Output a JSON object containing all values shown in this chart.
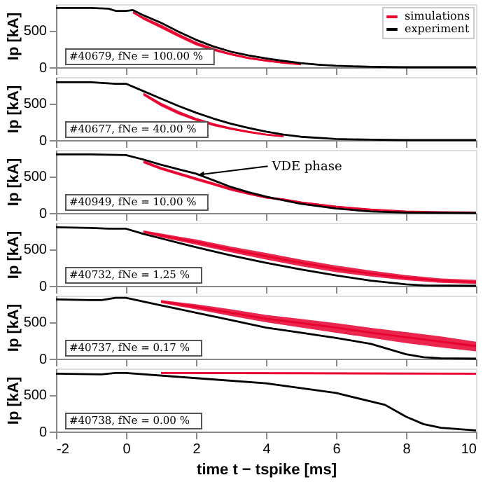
{
  "chart_data": [
    {
      "type": "line",
      "xlim": [
        -2,
        10
      ],
      "xticks": [
        -2,
        0,
        2,
        4,
        6,
        8,
        10
      ],
      "ylim": [
        0,
        850
      ],
      "yticks": [
        0,
        500
      ],
      "ylabel": "Ip [kA]",
      "tick_labels": "y",
      "legend": "top right",
      "grid": false,
      "annotations": [
        "#40679, fNe = 100.00 %"
      ],
      "series": [
        {
          "name": "simulations",
          "color": "#e8002f",
          "x": [
            0.2,
            0.5,
            1,
            1.5,
            2,
            2.5,
            3,
            3.5,
            4,
            4.5,
            5
          ],
          "values": [
            740,
            660,
            550,
            430,
            320,
            240,
            175,
            125,
            90,
            60,
            40
          ],
          "lower": [
            730,
            640,
            525,
            405,
            295,
            220,
            160,
            110,
            75,
            50,
            30
          ],
          "upper": [
            750,
            680,
            575,
            455,
            345,
            260,
            190,
            140,
            100,
            70,
            45
          ]
        },
        {
          "name": "experiment",
          "color": "#000000",
          "x": [
            -2,
            -1,
            -0.5,
            -0.3,
            0,
            0.2,
            0.5,
            1,
            1.5,
            2,
            2.5,
            3,
            3.5,
            4,
            4.5,
            5,
            5.5,
            6,
            7,
            8,
            10
          ],
          "values": [
            800,
            800,
            790,
            760,
            760,
            770,
            700,
            600,
            480,
            370,
            280,
            210,
            160,
            120,
            85,
            55,
            35,
            20,
            5,
            0,
            0
          ]
        }
      ]
    },
    {
      "type": "line",
      "xlim": [
        -2,
        10
      ],
      "xticks": [
        -2,
        0,
        2,
        4,
        6,
        8,
        10
      ],
      "ylim": [
        0,
        850
      ],
      "yticks": [
        0,
        500
      ],
      "ylabel": "Ip [kA]",
      "tick_labels": "y",
      "grid": false,
      "annotations": [
        "#40677, fNe = 40.00 %"
      ],
      "series": [
        {
          "color": "#e8002f",
          "x": [
            0.5,
            1,
            1.5,
            2,
            2.5,
            3,
            3.5,
            4,
            4.5
          ],
          "values": [
            620,
            480,
            370,
            280,
            210,
            155,
            110,
            75,
            50
          ],
          "lower": [
            600,
            455,
            345,
            260,
            190,
            140,
            100,
            65,
            40
          ],
          "upper": [
            640,
            505,
            395,
            300,
            230,
            170,
            125,
            85,
            60
          ]
        },
        {
          "color": "#000000",
          "x": [
            -2,
            -1,
            -0.3,
            0,
            0.5,
            1,
            1.5,
            2,
            2.5,
            3,
            3.5,
            4,
            4.5,
            5,
            6,
            7,
            8,
            10
          ],
          "values": [
            780,
            780,
            760,
            760,
            660,
            560,
            460,
            370,
            290,
            220,
            165,
            115,
            75,
            45,
            15,
            5,
            0,
            0
          ]
        }
      ]
    },
    {
      "type": "line",
      "xlim": [
        -2,
        10
      ],
      "xticks": [
        -2,
        0,
        2,
        4,
        6,
        8,
        10
      ],
      "ylim": [
        0,
        850
      ],
      "yticks": [
        0,
        500
      ],
      "ylabel": "Ip [kA]",
      "tick_labels": "y",
      "grid": false,
      "annotations": [
        "#40949, fNe = 10.00 %",
        {
          "text": "VDE phase",
          "x": 2.15,
          "y": 520
        }
      ],
      "series": [
        {
          "color": "#e8002f",
          "x": [
            0.5,
            1,
            1.5,
            2,
            2.5,
            3,
            3.5,
            4,
            4.5,
            5,
            6,
            7,
            8,
            9,
            10
          ],
          "values": [
            690,
            600,
            530,
            460,
            390,
            320,
            260,
            210,
            180,
            140,
            85,
            45,
            20,
            10,
            5
          ],
          "lower": [
            670,
            580,
            510,
            440,
            370,
            300,
            245,
            195,
            165,
            125,
            75,
            40,
            15,
            5,
            0
          ],
          "upper": [
            710,
            620,
            550,
            480,
            410,
            340,
            275,
            225,
            195,
            155,
            95,
            55,
            25,
            15,
            10
          ]
        },
        {
          "color": "#000000",
          "x": [
            -2,
            -1,
            0,
            0.5,
            1,
            1.5,
            2,
            2.5,
            3,
            3.5,
            4,
            4.5,
            5,
            6,
            7,
            8,
            10
          ],
          "values": [
            790,
            790,
            780,
            720,
            650,
            590,
            530,
            440,
            350,
            280,
            220,
            170,
            125,
            60,
            20,
            5,
            0
          ]
        }
      ]
    },
    {
      "type": "line",
      "xlim": [
        -2,
        10
      ],
      "xticks": [
        -2,
        0,
        2,
        4,
        6,
        8,
        10
      ],
      "ylim": [
        0,
        850
      ],
      "yticks": [
        0,
        500
      ],
      "ylabel": "Ip [kA]",
      "tick_labels": "y",
      "grid": false,
      "annotations": [
        "#40732, fNe = 1.25 %"
      ],
      "series": [
        {
          "color": "#e8002f",
          "x": [
            0.5,
            1,
            2,
            3,
            4,
            5,
            6,
            7,
            8,
            9,
            10
          ],
          "values": [
            730,
            680,
            590,
            490,
            400,
            310,
            230,
            165,
            110,
            70,
            50
          ],
          "lower": [
            715,
            655,
            555,
            450,
            355,
            265,
            185,
            125,
            75,
            40,
            25
          ],
          "upper": [
            745,
            705,
            625,
            530,
            445,
            355,
            275,
            205,
            145,
            100,
            80
          ]
        },
        {
          "color": "#000000",
          "x": [
            -2,
            -1,
            -0.5,
            0,
            0.5,
            1,
            1.5,
            2,
            3,
            4,
            5,
            6,
            7,
            8,
            8.5,
            10
          ],
          "values": [
            790,
            780,
            770,
            770,
            700,
            640,
            580,
            520,
            410,
            310,
            220,
            140,
            70,
            20,
            5,
            0
          ]
        }
      ]
    },
    {
      "type": "line",
      "xlim": [
        -2,
        10
      ],
      "xticks": [
        -2,
        0,
        2,
        4,
        6,
        8,
        10
      ],
      "ylim": [
        0,
        850
      ],
      "yticks": [
        0,
        500
      ],
      "ylabel": "Ip [kA]",
      "tick_labels": "y",
      "grid": false,
      "annotations": [
        "#40737, fNe = 0.17 %"
      ],
      "series": [
        {
          "color": "#e8002f",
          "x": [
            1,
            2,
            3,
            4,
            5,
            6,
            7,
            8,
            9,
            10
          ],
          "values": [
            770,
            700,
            620,
            540,
            480,
            420,
            350,
            290,
            230,
            170
          ],
          "lower": [
            750,
            665,
            575,
            490,
            420,
            350,
            280,
            210,
            150,
            100
          ],
          "upper": [
            790,
            735,
            665,
            590,
            535,
            480,
            415,
            360,
            300,
            230
          ]
        },
        {
          "color": "#000000",
          "x": [
            -2,
            -1,
            -0.7,
            -0.3,
            0,
            1,
            2,
            3,
            4,
            5,
            6,
            7,
            8,
            8.5,
            9,
            10
          ],
          "values": [
            800,
            790,
            790,
            820,
            820,
            720,
            620,
            520,
            420,
            350,
            280,
            200,
            60,
            20,
            5,
            0
          ]
        }
      ]
    },
    {
      "type": "line",
      "xlim": [
        -2,
        10
      ],
      "xticks": [
        -2,
        0,
        2,
        4,
        6,
        8,
        10
      ],
      "ylim": [
        0,
        850
      ],
      "yticks": [
        0,
        500
      ],
      "xlabel": "time t − tspike [ms]",
      "ylabel": "Ip [kA]",
      "grid": false,
      "annotations": [
        "#40738, fNe = 0.00 %"
      ],
      "series": [
        {
          "color": "#e8002f",
          "x": [
            1,
            10
          ],
          "values": [
            790,
            780
          ],
          "lower": [
            780,
            770
          ],
          "upper": [
            800,
            790
          ]
        },
        {
          "color": "#000000",
          "x": [
            -2,
            -0.7,
            -0.3,
            0,
            2,
            4,
            6,
            7.4,
            8,
            8.5,
            9,
            10
          ],
          "values": [
            780,
            770,
            790,
            790,
            720,
            650,
            520,
            360,
            200,
            100,
            50,
            15
          ]
        }
      ]
    }
  ]
}
